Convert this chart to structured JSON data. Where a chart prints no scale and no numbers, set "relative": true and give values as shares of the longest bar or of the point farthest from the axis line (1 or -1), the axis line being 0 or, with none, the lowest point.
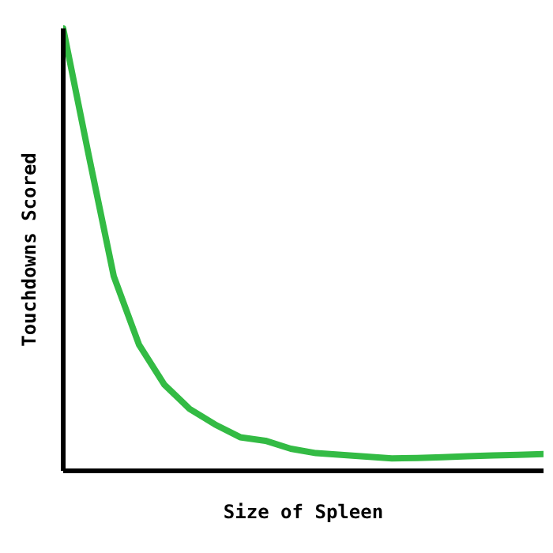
{
  "chart_data": {
    "type": "line",
    "relative": true,
    "xlabel": "Size of Spleen",
    "ylabel": "Touchdowns Scored",
    "categories": [
      null,
      null,
      null,
      null,
      null,
      null,
      null,
      null,
      null,
      null,
      null,
      null,
      null,
      null,
      null,
      null,
      null,
      null,
      null,
      null
    ],
    "marker": "none",
    "line_style": "solid",
    "series": [
      {
        "color": "#33bb44",
        "values": [
          1.0,
          0.716,
          0.44,
          0.285,
          0.195,
          0.14,
          0.105,
          0.076,
          0.068,
          0.05,
          0.04,
          0.036,
          0.032,
          0.028,
          0.029,
          0.031,
          0.033,
          0.035,
          0.036,
          0.038
        ]
      }
    ]
  }
}
